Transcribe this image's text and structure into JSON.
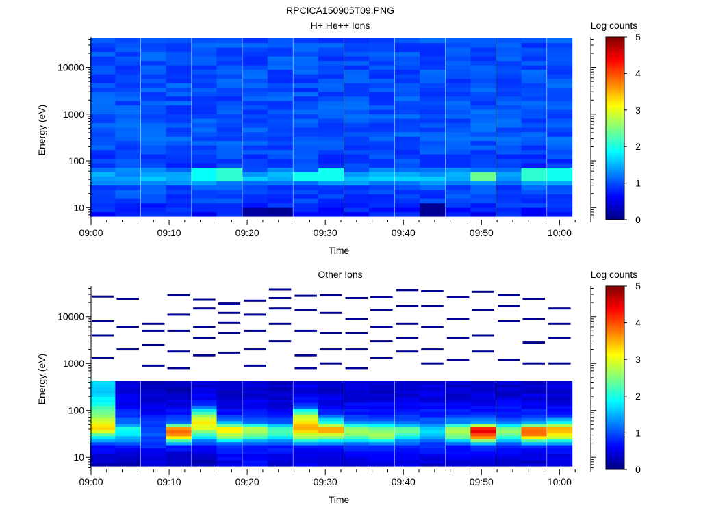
{
  "page_title": "RPCICA150905T09.PNG",
  "chart_data": [
    {
      "type": "heatmap",
      "title": "H+ He++ Ions",
      "xlabel": "Time",
      "ylabel": "Energy (eV)",
      "x_ticks": [
        "09:00",
        "09:10",
        "09:20",
        "09:30",
        "09:40",
        "09:50",
        "10:00"
      ],
      "x_range_minutes": [
        0,
        64
      ],
      "y_ticks": [
        "10",
        "100",
        "1000",
        "10000"
      ],
      "y_scale": "log",
      "y_range_eV": [
        5.5,
        45000
      ],
      "colorbar": {
        "label": "Log counts",
        "ticks": [
          "0",
          "1",
          "2",
          "3",
          "4",
          "5"
        ],
        "range": [
          0,
          5
        ]
      },
      "time_bins_minutes": [
        1.5,
        4.7,
        8.0,
        11.2,
        14.5,
        17.7,
        21.0,
        24.2,
        27.5,
        30.7,
        34.0,
        37.2,
        40.5,
        43.7,
        47.0,
        50.2,
        53.5,
        56.7,
        60.0
      ],
      "profile_eV": [
        8,
        12,
        18,
        28,
        40,
        55,
        80,
        300,
        3000,
        30000
      ],
      "profile_log_counts": [
        0.7,
        0.9,
        0.95,
        1.0,
        1.55,
        1.4,
        0.9,
        1.05,
        1.0,
        1.0
      ],
      "highlights": [
        {
          "time_min": 14.5,
          "energy_eV": 50,
          "value": 1.9
        },
        {
          "time_min": 17.7,
          "energy_eV": 55,
          "value": 2.1
        },
        {
          "time_min": 27.5,
          "energy_eV": 45,
          "value": 1.95
        },
        {
          "time_min": 30.7,
          "energy_eV": 50,
          "value": 1.95
        },
        {
          "time_min": 50.2,
          "energy_eV": 48,
          "value": 2.4
        },
        {
          "time_min": 56.7,
          "energy_eV": 55,
          "value": 2.1
        },
        {
          "time_min": 60.0,
          "energy_eV": 55,
          "value": 1.95
        },
        {
          "time_min": 21.0,
          "energy_eV": 7,
          "value": 0.15
        },
        {
          "time_min": 24.2,
          "energy_eV": 7,
          "value": 0.1
        },
        {
          "time_min": 43.7,
          "energy_eV": 9,
          "value": 0.1
        }
      ]
    },
    {
      "type": "heatmap",
      "title": "Other Ions",
      "xlabel": "Time",
      "ylabel": "Energy (eV)",
      "x_ticks": [
        "09:00",
        "09:10",
        "09:20",
        "09:30",
        "09:40",
        "09:50",
        "10:00"
      ],
      "x_range_minutes": [
        0,
        64
      ],
      "y_ticks": [
        "10",
        "100",
        "1000",
        "10000"
      ],
      "y_scale": "log",
      "y_range_eV": [
        5.5,
        45000
      ],
      "colorbar": {
        "label": "Log counts",
        "ticks": [
          "0",
          "1",
          "2",
          "3",
          "4",
          "5"
        ],
        "range": [
          0,
          5
        ]
      },
      "time_bins_minutes": [
        1.5,
        4.7,
        8.0,
        11.2,
        14.5,
        17.7,
        21.0,
        24.2,
        27.5,
        30.7,
        34.0,
        37.2,
        40.5,
        43.7,
        47.0,
        50.2,
        53.5,
        56.7,
        60.0
      ],
      "column_profiles_eV": [
        8,
        12,
        18,
        28,
        40,
        55,
        80,
        130,
        250
      ],
      "column_profiles_log_counts": [
        [
          0.3,
          0.5,
          0.8,
          1.8,
          3.4,
          3.1,
          2.6,
          2.0,
          1.6
        ],
        [
          0.3,
          0.5,
          0.7,
          1.7,
          2.0,
          1.2,
          0.8,
          0.6,
          0.4
        ],
        [
          0.4,
          0.6,
          0.8,
          1.0,
          1.1,
          0.9,
          0.7,
          0.5,
          0.3
        ],
        [
          0.3,
          0.5,
          0.8,
          3.5,
          4.0,
          1.2,
          0.8,
          0.5,
          0.3
        ],
        [
          0.3,
          0.4,
          0.7,
          1.8,
          2.9,
          3.2,
          2.6,
          0.8,
          0.5
        ],
        [
          0.5,
          0.7,
          0.8,
          2.7,
          3.4,
          1.6,
          0.8,
          0.5,
          0.4
        ],
        [
          0.6,
          0.7,
          0.8,
          2.2,
          3.0,
          1.3,
          0.8,
          0.6,
          0.4
        ],
        [
          0.4,
          0.6,
          0.8,
          2.0,
          2.3,
          1.1,
          0.7,
          0.5,
          0.3
        ],
        [
          0.5,
          0.6,
          0.8,
          2.8,
          3.5,
          3.3,
          2.8,
          0.8,
          0.5
        ],
        [
          0.5,
          0.6,
          0.8,
          2.6,
          3.8,
          2.2,
          0.9,
          0.6,
          0.4
        ],
        [
          0.5,
          0.6,
          0.8,
          2.4,
          2.8,
          1.4,
          0.8,
          0.6,
          0.4
        ],
        [
          0.5,
          0.6,
          0.8,
          2.7,
          2.6,
          1.3,
          0.8,
          0.6,
          0.4
        ],
        [
          0.5,
          0.7,
          0.8,
          2.0,
          2.4,
          1.2,
          0.8,
          0.6,
          0.4
        ],
        [
          0.4,
          0.6,
          0.8,
          1.6,
          1.8,
          1.1,
          0.8,
          0.6,
          0.4
        ],
        [
          0.5,
          0.6,
          0.8,
          2.5,
          2.9,
          1.4,
          0.8,
          0.6,
          0.4
        ],
        [
          0.5,
          0.6,
          0.8,
          4.0,
          4.5,
          1.5,
          0.8,
          0.6,
          0.4
        ],
        [
          0.4,
          0.6,
          0.8,
          2.2,
          2.6,
          1.2,
          0.8,
          0.6,
          0.4
        ],
        [
          0.4,
          0.6,
          0.8,
          3.6,
          4.1,
          1.6,
          0.8,
          0.6,
          0.4
        ],
        [
          0.5,
          0.6,
          0.8,
          3.1,
          3.7,
          2.1,
          0.8,
          0.6,
          0.4
        ]
      ],
      "sparse_lines_eV": [
        [
          27000,
          8000,
          4000,
          1300
        ],
        [
          24000,
          6000,
          2000
        ],
        [
          7000,
          5000,
          2500,
          900
        ],
        [
          29000,
          11000,
          5000,
          1800,
          800
        ],
        [
          23000,
          15000,
          6000,
          3500,
          1500
        ],
        [
          19000,
          12000,
          7500,
          4500,
          1700
        ],
        [
          22000,
          11000,
          5000,
          2000,
          900
        ],
        [
          38000,
          25000,
          15000,
          7000,
          3000
        ],
        [
          28000,
          14000,
          5000,
          1500,
          800
        ],
        [
          29000,
          12000,
          4500,
          2000,
          1000
        ],
        [
          25000,
          9000,
          4500,
          2000,
          800
        ],
        [
          26000,
          14000,
          6000,
          3000,
          1300
        ],
        [
          37000,
          17000,
          7000,
          3500,
          1800
        ],
        [
          35000,
          17000,
          6000,
          2000,
          1000
        ],
        [
          26000,
          9000,
          3500,
          1200
        ],
        [
          34000,
          14000,
          4000,
          1800
        ],
        [
          29000,
          17000,
          8000,
          1200
        ],
        [
          24000,
          9000,
          2800,
          1000
        ],
        [
          15000,
          7000,
          3500,
          1000
        ]
      ]
    }
  ]
}
